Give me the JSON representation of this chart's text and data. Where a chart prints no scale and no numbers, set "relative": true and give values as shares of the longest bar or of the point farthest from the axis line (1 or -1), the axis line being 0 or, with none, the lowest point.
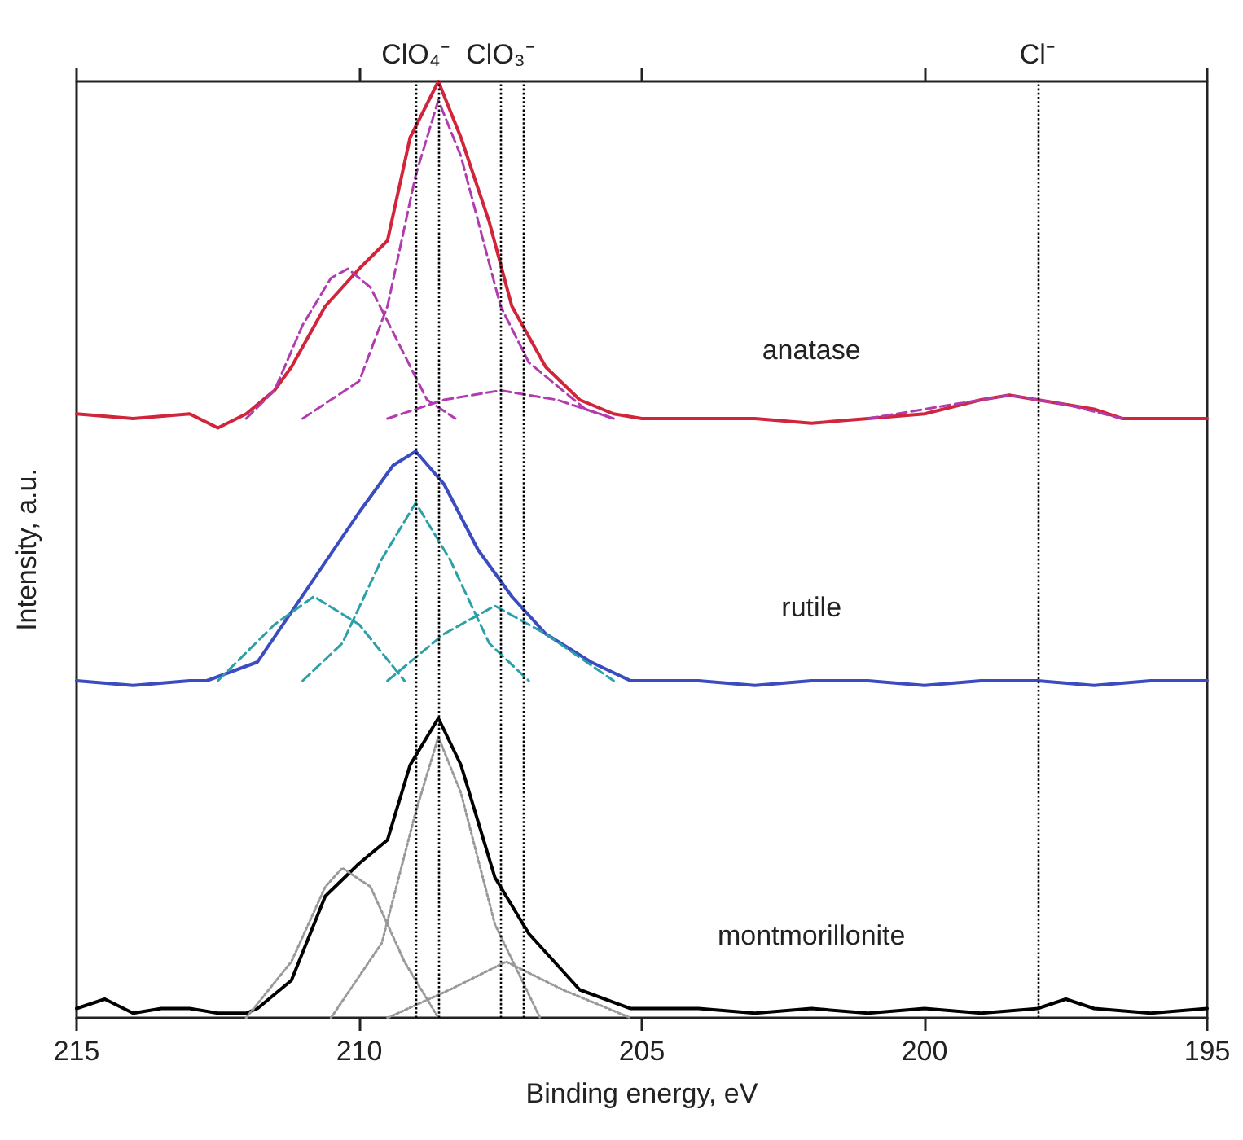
{
  "chart_data": {
    "type": "line",
    "relative": true,
    "xlabel": "Binding energy, eV",
    "ylabel": "Intensity, a.u.",
    "xlim": [
      215,
      195
    ],
    "xticks": [
      215,
      210,
      205,
      200,
      195
    ],
    "grid": false,
    "legend": false,
    "marker": "none",
    "series": [
      {
        "name": "anatase",
        "color": "#d0253a",
        "x": [
          215,
          214,
          213,
          212.5,
          212,
          211.5,
          211.2,
          210.6,
          210,
          209.5,
          209.1,
          208.6,
          208.2,
          207.7,
          207.3,
          206.7,
          206.1,
          205.5,
          205,
          204,
          203,
          202,
          201,
          200,
          199,
          198.5,
          198,
          197,
          196.5,
          196,
          195
        ],
        "values": [
          0.645,
          0.64,
          0.645,
          0.63,
          0.645,
          0.67,
          0.695,
          0.76,
          0.8,
          0.83,
          0.94,
          1,
          0.94,
          0.85,
          0.76,
          0.695,
          0.66,
          0.645,
          0.64,
          0.64,
          0.64,
          0.635,
          0.64,
          0.645,
          0.66,
          0.665,
          0.66,
          0.65,
          0.64,
          0.64,
          0.64
        ]
      },
      {
        "color": "#b03cb0",
        "line_style": "dashed",
        "x": [
          211,
          210,
          209.5,
          209,
          208.6,
          208.2,
          207.5,
          207,
          206,
          205.5
        ],
        "values": [
          0.64,
          0.68,
          0.76,
          0.9,
          0.98,
          0.92,
          0.76,
          0.7,
          0.65,
          0.64
        ]
      },
      {
        "color": "#b03cb0",
        "line_style": "dashed",
        "x": [
          212,
          211.5,
          211,
          210.5,
          210.2,
          209.8,
          209.3,
          208.8,
          208.3
        ],
        "values": [
          0.64,
          0.67,
          0.74,
          0.79,
          0.8,
          0.78,
          0.72,
          0.66,
          0.64
        ]
      },
      {
        "color": "#b03cb0",
        "line_style": "dashed",
        "x": [
          209.5,
          208.5,
          207.5,
          206.5,
          205.5
        ],
        "values": [
          0.64,
          0.66,
          0.67,
          0.66,
          0.64
        ]
      },
      {
        "color": "#b03cb0",
        "line_style": "dashed",
        "x": [
          201,
          199.5,
          198.5,
          197.5,
          196.5
        ],
        "values": [
          0.64,
          0.655,
          0.665,
          0.655,
          0.64
        ]
      },
      {
        "name": "rutile",
        "color": "#3a4cc0",
        "x": [
          215,
          214,
          213,
          212.7,
          211.8,
          210.9,
          210,
          209.4,
          209,
          208.5,
          207.9,
          207.3,
          206.7,
          205.9,
          205.2,
          204,
          203,
          202,
          201,
          200,
          199,
          198,
          197,
          196,
          195
        ],
        "values": [
          0.36,
          0.355,
          0.36,
          0.36,
          0.38,
          0.46,
          0.54,
          0.59,
          0.605,
          0.57,
          0.5,
          0.45,
          0.41,
          0.38,
          0.36,
          0.36,
          0.355,
          0.36,
          0.36,
          0.355,
          0.36,
          0.36,
          0.355,
          0.36,
          0.36
        ]
      },
      {
        "color": "#2aa0a8",
        "line_style": "dashed",
        "x": [
          211,
          210.3,
          209.6,
          209,
          208.4,
          207.7,
          207
        ],
        "values": [
          0.36,
          0.4,
          0.49,
          0.55,
          0.49,
          0.4,
          0.36
        ]
      },
      {
        "color": "#2aa0a8",
        "line_style": "dashed",
        "x": [
          212.5,
          211.5,
          210.8,
          210,
          209.2
        ],
        "values": [
          0.36,
          0.42,
          0.45,
          0.42,
          0.36
        ]
      },
      {
        "color": "#2aa0a8",
        "line_style": "dashed",
        "x": [
          209.5,
          208.5,
          207.6,
          206.7,
          205.5
        ],
        "values": [
          0.36,
          0.41,
          0.44,
          0.41,
          0.36
        ]
      },
      {
        "name": "montmorillonite",
        "color": "#000000",
        "x": [
          215,
          214.5,
          214,
          213.5,
          213,
          212.5,
          212,
          211.8,
          211.2,
          210.6,
          210,
          209.5,
          209.1,
          208.6,
          208.2,
          207.6,
          207,
          206.1,
          205.2,
          204,
          203,
          202,
          201,
          200,
          199,
          198,
          197.5,
          197,
          196,
          195
        ],
        "values": [
          0.01,
          0.02,
          0.005,
          0.01,
          0.01,
          0.005,
          0.005,
          0.01,
          0.04,
          0.13,
          0.165,
          0.19,
          0.27,
          0.32,
          0.27,
          0.15,
          0.09,
          0.03,
          0.01,
          0.01,
          0.005,
          0.01,
          0.005,
          0.01,
          0.005,
          0.01,
          0.02,
          0.01,
          0.005,
          0.01
        ]
      },
      {
        "color": "#999999",
        "line_style": "dotted",
        "x": [
          210.5,
          209.6,
          209,
          208.6,
          208.2,
          207.6,
          206.8
        ],
        "values": [
          0,
          0.08,
          0.22,
          0.3,
          0.24,
          0.1,
          0
        ]
      },
      {
        "color": "#999999",
        "line_style": "dotted",
        "x": [
          212,
          211.2,
          210.6,
          210.3,
          209.8,
          209.2,
          208.6
        ],
        "values": [
          0,
          0.06,
          0.14,
          0.16,
          0.14,
          0.06,
          0
        ]
      },
      {
        "color": "#999999",
        "line_style": "dotted",
        "x": [
          209.5,
          208.4,
          207.4,
          206.4,
          205.2
        ],
        "values": [
          0,
          0.03,
          0.06,
          0.03,
          0
        ]
      }
    ],
    "ref_lines": [
      {
        "axis": "x",
        "value": 209,
        "label": "ClO₄⁻",
        "line_style": "dotted",
        "color": "#000000"
      },
      {
        "axis": "x",
        "value": 208.6,
        "label": null,
        "line_style": "dotted",
        "color": "#000000"
      },
      {
        "axis": "x",
        "value": 207.5,
        "label": "ClO₃⁻",
        "line_style": "dotted",
        "color": "#000000"
      },
      {
        "axis": "x",
        "value": 207.1,
        "label": null,
        "line_style": "dotted",
        "color": "#000000"
      },
      {
        "axis": "x",
        "value": 198,
        "label": "Cl⁻",
        "line_style": "dotted",
        "color": "#000000"
      }
    ]
  }
}
